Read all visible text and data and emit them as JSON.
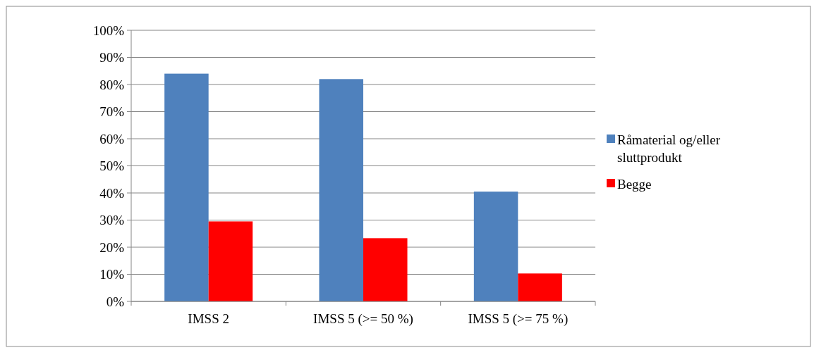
{
  "chart_data": {
    "type": "bar",
    "categories": [
      "IMSS 2",
      "IMSS 5 (>= 50 %)",
      "IMSS 5 (>= 75 %)"
    ],
    "series": [
      {
        "name": "Råmaterial og/eller sluttprodukt",
        "color": "#4f81bd",
        "values": [
          84,
          82,
          40.5
        ]
      },
      {
        "name": "Begge",
        "color": "#ff0000",
        "values": [
          29.5,
          23.3,
          10.3
        ]
      }
    ],
    "ylim": [
      0,
      100
    ],
    "yticks": [
      {
        "value": 0,
        "label": "0%"
      },
      {
        "value": 10,
        "label": "10%"
      },
      {
        "value": 20,
        "label": "20%"
      },
      {
        "value": 30,
        "label": "30%"
      },
      {
        "value": 40,
        "label": "40%"
      },
      {
        "value": 50,
        "label": "50%"
      },
      {
        "value": 60,
        "label": "60%"
      },
      {
        "value": 70,
        "label": "70%"
      },
      {
        "value": 80,
        "label": "80%"
      },
      {
        "value": 90,
        "label": "90%"
      },
      {
        "value": 100,
        "label": "100%"
      }
    ],
    "grid": "y",
    "legend": "right"
  }
}
